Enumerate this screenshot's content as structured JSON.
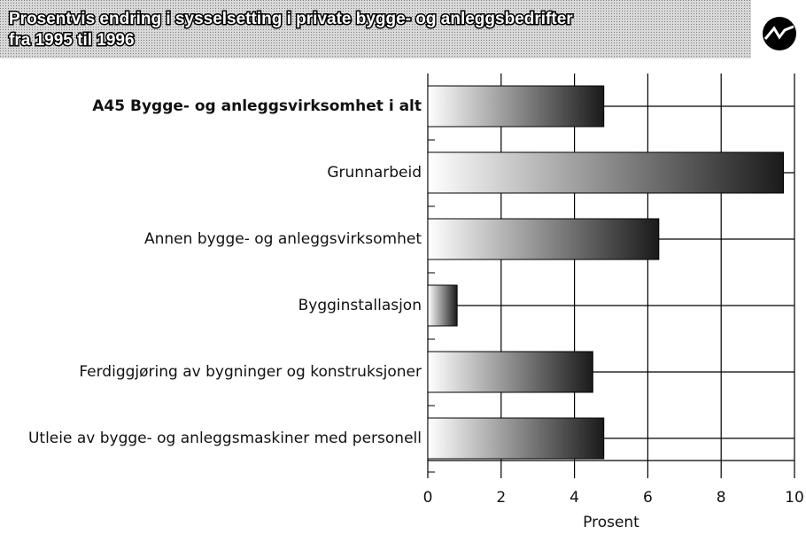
{
  "chart_data": {
    "type": "bar",
    "orientation": "horizontal",
    "title": [
      "Prosentvis endring i sysselsetting i private bygge- og anleggsbedrifter",
      "fra 1995 til 1996"
    ],
    "categories": [
      "A45 Bygge- og anleggsvirksomhet i alt",
      "Grunnarbeid",
      "Annen bygge- og anleggsvirksomhet",
      "Bygginstallasjon",
      "Ferdiggjøring av bygninger og konstruksjoner",
      "Utleie av bygge- og anleggsmaskiner med personell"
    ],
    "values": [
      4.8,
      9.7,
      6.3,
      0.8,
      4.5,
      4.8
    ],
    "color": "#1a1a1a",
    "x_label": "Prosent",
    "xlim": [
      0,
      10
    ],
    "xticks": [
      0,
      2,
      4,
      6,
      8,
      10
    ],
    "grid": true
  }
}
